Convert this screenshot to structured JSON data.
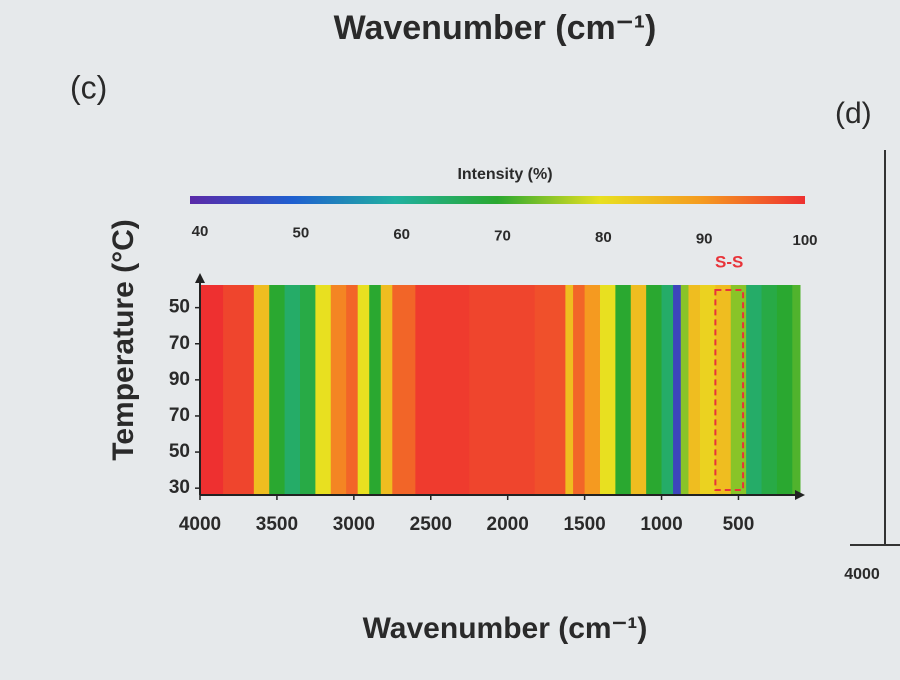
{
  "chart_data": {
    "type": "heatmap",
    "top_text": "Wavenumber (cm⁻¹)",
    "panel_label": "(c)",
    "next_panel_label": "(d)",
    "next_panel_tick": "4000",
    "xlabel": "Wavenumber (cm⁻¹)",
    "ylabel": "Temperature (°C)",
    "annotation": "S-S",
    "annotation_color": "#e8343a",
    "xlim": [
      4000,
      100
    ],
    "xticks": [
      4000,
      3500,
      3000,
      2500,
      2000,
      1500,
      1000,
      500
    ],
    "categories": [
      "30",
      "50",
      "70",
      "90",
      "70",
      "50"
    ],
    "x": [
      4000,
      3700,
      3600,
      3500,
      3400,
      3300,
      3200,
      3100,
      3000,
      2950,
      2850,
      2800,
      2700,
      2500,
      2000,
      1650,
      1600,
      1550,
      1450,
      1350,
      1250,
      1150,
      1050,
      950,
      900,
      850,
      800,
      700,
      600,
      500,
      400,
      300,
      200,
      100
    ],
    "values": [
      100,
      98,
      85,
      70,
      65,
      68,
      80,
      92,
      95,
      80,
      70,
      85,
      95,
      99,
      98,
      97,
      85,
      95,
      90,
      80,
      70,
      85,
      70,
      65,
      45,
      75,
      85,
      82,
      85,
      75,
      65,
      68,
      70,
      72
    ],
    "colorbar": {
      "label": "Intensity (%)",
      "ticks": [
        40,
        50,
        60,
        70,
        80,
        90,
        100
      ],
      "colors": [
        "#5b2aa8",
        "#1f5fd0",
        "#20b0a0",
        "#2aa830",
        "#e8e020",
        "#f59a20",
        "#ee3030"
      ]
    }
  }
}
